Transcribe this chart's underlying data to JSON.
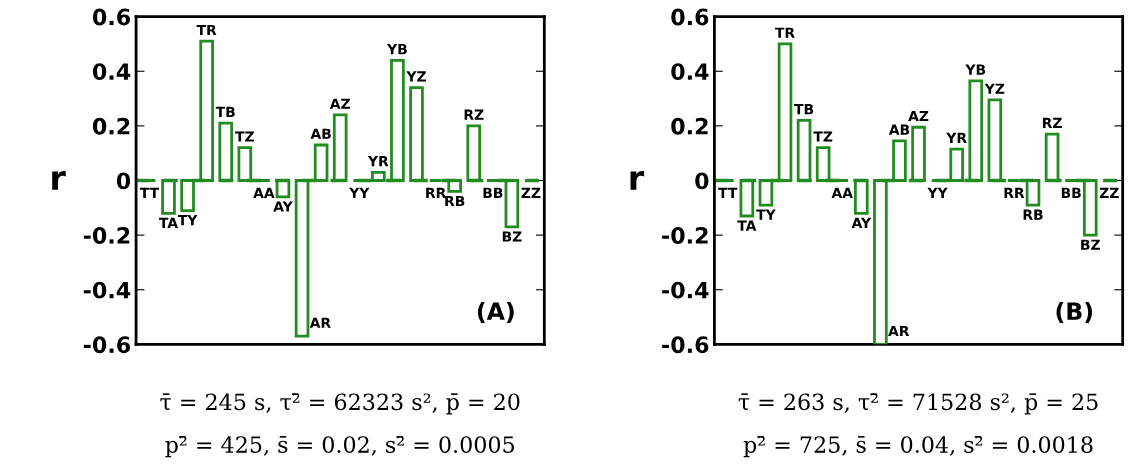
{
  "chart_data": [
    {
      "type": "bar",
      "ylabel": "r",
      "categories": [
        "TT",
        "TA",
        "TY",
        "TR",
        "TB",
        "TZ",
        "AA",
        "AY",
        "AR",
        "AB",
        "AZ",
        "YY",
        "YR",
        "YB",
        "YZ",
        "RR",
        "RB",
        "RZ",
        "BB",
        "BZ",
        "ZZ"
      ],
      "series": [
        {
          "color": "#228b22",
          "values": [
            0,
            -0.12,
            -0.11,
            0.51,
            0.21,
            0.12,
            0,
            -0.06,
            -0.57,
            0.13,
            0.24,
            0,
            0.03,
            0.44,
            0.34,
            0,
            -0.04,
            0.2,
            0,
            -0.17,
            0
          ]
        }
      ],
      "ylim": [
        -0.6,
        0.6
      ],
      "yticks": [
        -0.6,
        -0.4,
        -0.2,
        0,
        0.2,
        0.4,
        0.6
      ],
      "tick_labels": "y",
      "grid": false,
      "legend": false,
      "ref_lines": [
        {
          "axis": "y",
          "value": 0,
          "color": "#228b22",
          "line_style": "dashed"
        }
      ],
      "annotations": [
        "(A)",
        "τ̄ = 245 s, τ²̄ = 62323 s², p̄ = 20",
        "p²̄ = 425, s̄ = 0.02, s²̄ = 0.0005"
      ]
    },
    {
      "type": "bar",
      "ylabel": "r",
      "categories": [
        "TT",
        "TA",
        "TY",
        "TR",
        "TB",
        "TZ",
        "AA",
        "AY",
        "AR",
        "AB",
        "AZ",
        "YY",
        "YR",
        "YB",
        "YZ",
        "RR",
        "RB",
        "RZ",
        "BB",
        "BZ",
        "ZZ"
      ],
      "series": [
        {
          "color": "#228b22",
          "values": [
            0,
            -0.13,
            -0.09,
            0.5,
            0.22,
            0.12,
            0,
            -0.12,
            -0.6,
            0.145,
            0.195,
            0,
            0.115,
            0.365,
            0.295,
            0,
            -0.09,
            0.17,
            0,
            -0.2,
            0
          ]
        }
      ],
      "ylim": [
        -0.6,
        0.6
      ],
      "yticks": [
        -0.6,
        -0.4,
        -0.2,
        0,
        0.2,
        0.4,
        0.6
      ],
      "tick_labels": "y",
      "grid": false,
      "legend": false,
      "ref_lines": [
        {
          "axis": "y",
          "value": 0,
          "color": "#228b22",
          "line_style": "dashed"
        }
      ],
      "annotations": [
        "(B)",
        "τ̄ = 263 s, τ²̄ = 71528 s², p̄ = 25",
        "p²̄ = 725, s̄ = 0.04, s²̄ = 0.0018"
      ]
    }
  ]
}
